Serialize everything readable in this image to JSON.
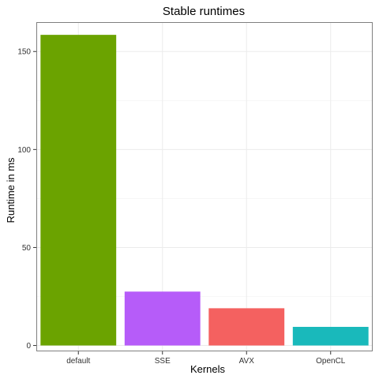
{
  "chart_data": {
    "type": "bar",
    "title": "Stable runtimes",
    "xlabel": "Kernels",
    "ylabel": "Runtime in ms",
    "categories": [
      "default",
      "SSE",
      "AVX",
      "OpenCL"
    ],
    "values": [
      158.5,
      27.5,
      19,
      9.5
    ],
    "colors": [
      "#6ba300",
      "#b65cf9",
      "#f46160",
      "#19b9bb"
    ],
    "ylim": [
      -3,
      165
    ],
    "yticks": [
      0,
      50,
      100,
      150
    ],
    "grid": true
  }
}
